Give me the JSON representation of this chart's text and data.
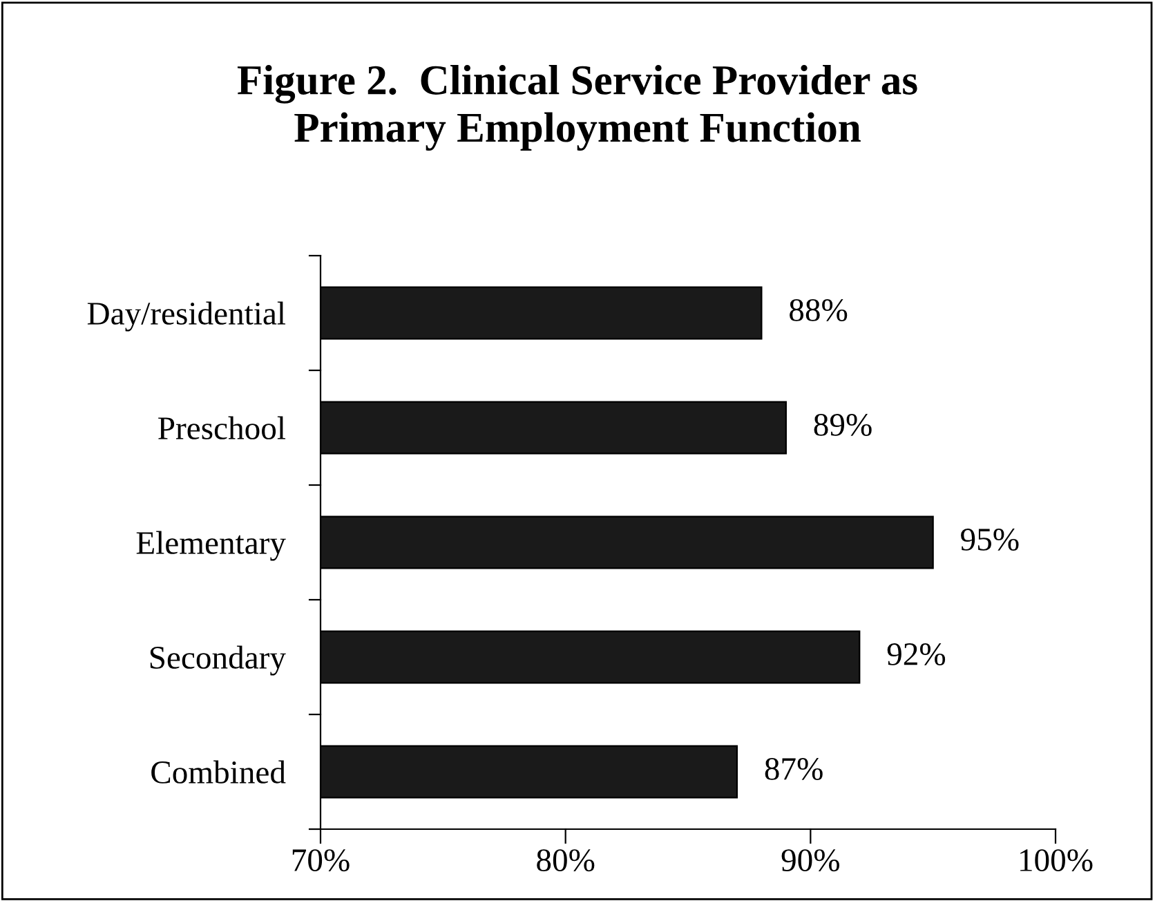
{
  "chart_data": {
    "type": "bar",
    "orientation": "horizontal",
    "title": "Figure 2.  Clinical Service Provider as\nPrimary Employment Function",
    "categories": [
      "Day/residential",
      "Preschool",
      "Elementary",
      "Secondary",
      "Combined"
    ],
    "values": [
      88,
      89,
      95,
      92,
      87
    ],
    "value_labels": [
      "88%",
      "89%",
      "95%",
      "92%",
      "87%"
    ],
    "color": "#1a1a1a",
    "xlim": [
      70,
      100
    ],
    "xticks": [
      {
        "value": 70,
        "label": "70%"
      },
      {
        "value": 80,
        "label": "80%"
      },
      {
        "value": 90,
        "label": "90%"
      },
      {
        "value": 100,
        "label": "100%"
      }
    ],
    "grid": false,
    "legend": false
  }
}
